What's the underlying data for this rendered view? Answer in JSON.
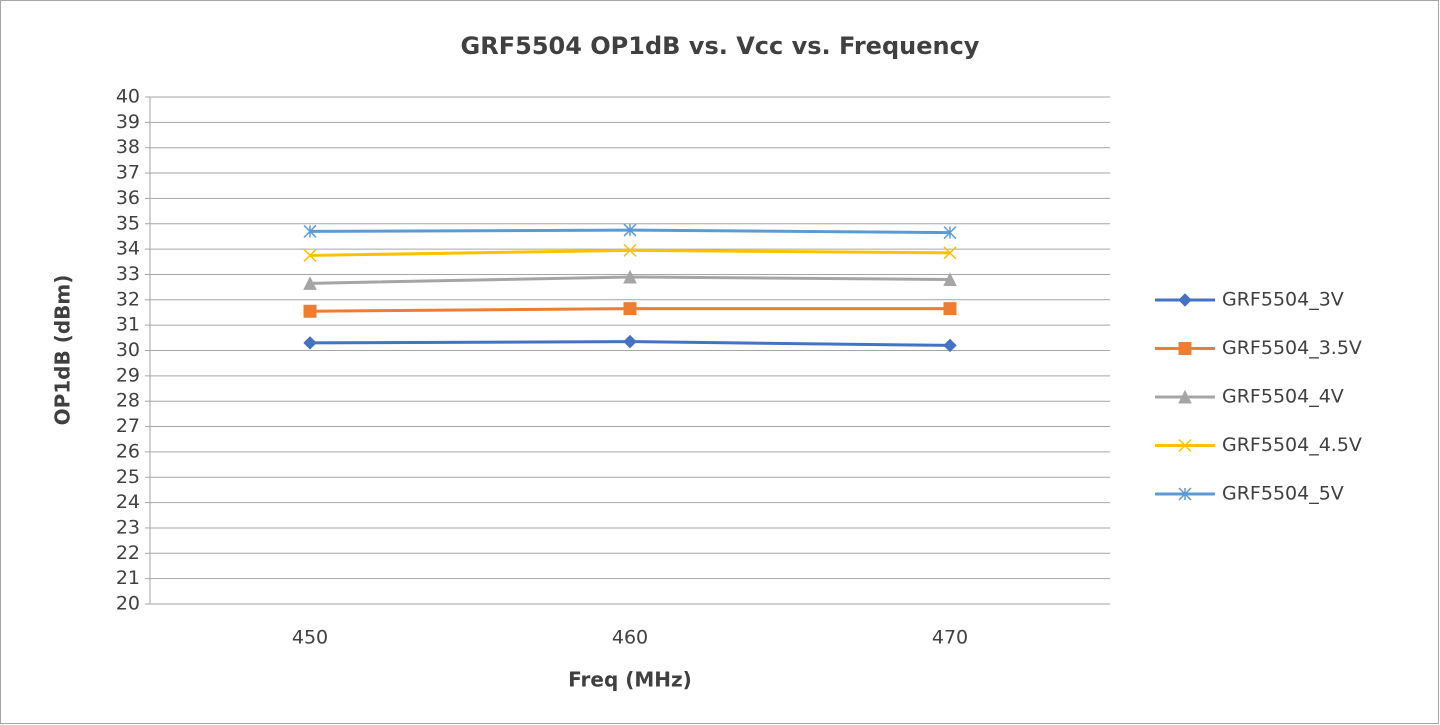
{
  "chart_data": {
    "type": "line",
    "title": "GRF5504 OP1dB vs. Vcc vs. Frequency",
    "x_label": "Freq (MHz)",
    "y_label": "OP1dB (dBm)",
    "categories": [
      "450",
      "460",
      "470"
    ],
    "series": [
      {
        "name": "GRF5504_3V",
        "color": "#4472c4",
        "marker": "diamond",
        "values": [
          30.3,
          30.35,
          30.2
        ]
      },
      {
        "name": "GRF5504_3.5V",
        "color": "#ed7d31",
        "marker": "square",
        "values": [
          31.55,
          31.65,
          31.65
        ]
      },
      {
        "name": "GRF5504_4V",
        "color": "#a5a5a5",
        "marker": "triangle",
        "values": [
          32.65,
          32.9,
          32.8
        ]
      },
      {
        "name": "GRF5504_4.5V",
        "color": "#ffc000",
        "marker": "x",
        "values": [
          33.75,
          33.95,
          33.85
        ]
      },
      {
        "name": "GRF5504_5V",
        "color": "#5b9bd5",
        "marker": "star",
        "values": [
          34.7,
          34.75,
          34.65
        ]
      }
    ],
    "ylim": [
      20,
      40
    ],
    "yticks": [
      20,
      21,
      22,
      23,
      24,
      25,
      26,
      27,
      28,
      29,
      30,
      31,
      32,
      33,
      34,
      35,
      36,
      37,
      38,
      39,
      40
    ],
    "grid": true,
    "legend": "right"
  }
}
